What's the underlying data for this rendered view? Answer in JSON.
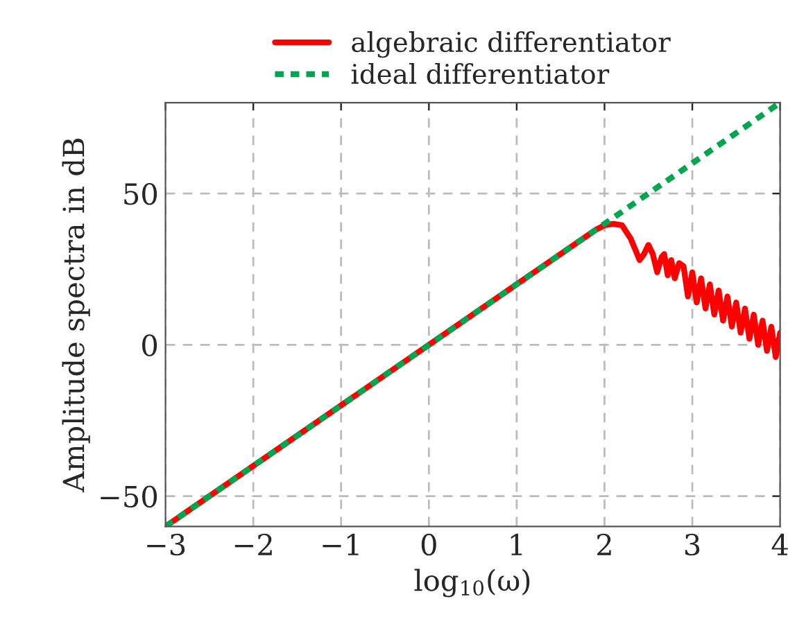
{
  "chart_data": {
    "type": "line",
    "xlabel": "log$_{10}$(ω)",
    "ylabel": "Amplitude spectra in dB",
    "xlim": [
      -3,
      4
    ],
    "ylim": [
      -60,
      80
    ],
    "xticks": [
      -3,
      -2,
      -1,
      0,
      1,
      2,
      3,
      4
    ],
    "yticks": [
      -50,
      0,
      50
    ],
    "grid": true,
    "legend": "top",
    "series": [
      {
        "name": "algebraic differentiator",
        "color": "#ff0000",
        "line_style": "solid",
        "x": [
          -3,
          1.9,
          2.0,
          2.1,
          2.2,
          2.3,
          2.4,
          2.45,
          2.5,
          2.55,
          2.6,
          2.65,
          2.68,
          2.72,
          2.76,
          2.8,
          2.85,
          2.9,
          2.95,
          3.0,
          3.05,
          3.1,
          3.15,
          3.2,
          3.25,
          3.3,
          3.35,
          3.4,
          3.45,
          3.5,
          3.55,
          3.6,
          3.65,
          3.7,
          3.75,
          3.8,
          3.85,
          3.9,
          3.95,
          4.0
        ],
        "values": [
          -60,
          38,
          39.5,
          40,
          39.5,
          35,
          28,
          30,
          33,
          30,
          24,
          29,
          30,
          23,
          28,
          22,
          27,
          26,
          16,
          24,
          14,
          22,
          12,
          20,
          10,
          18,
          8,
          16,
          6,
          14,
          4,
          12,
          2,
          10,
          0,
          8,
          -2,
          6,
          -4,
          4
        ]
      },
      {
        "name": "ideal differentiator",
        "color": "#00a550",
        "line_style": "dashed",
        "x": [
          -3,
          4
        ],
        "values": [
          -60,
          80
        ]
      }
    ]
  }
}
